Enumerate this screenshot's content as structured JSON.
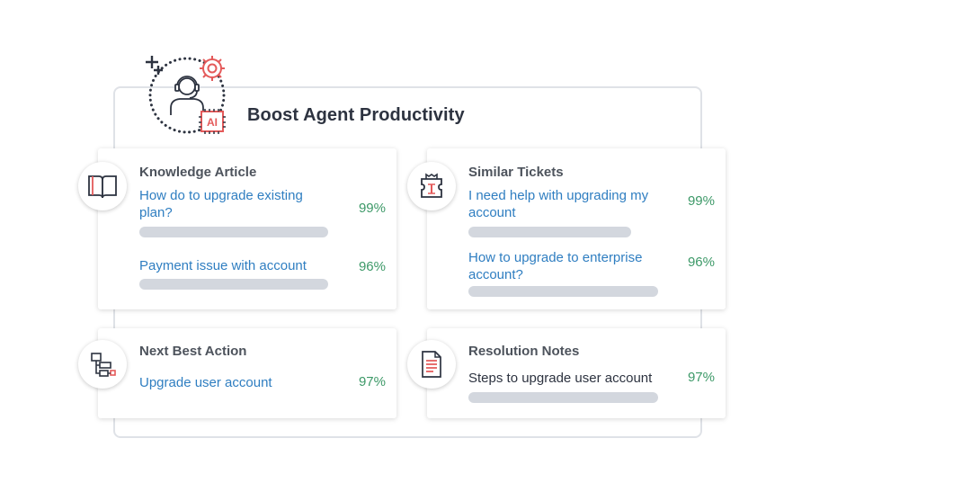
{
  "header": {
    "title": "Boost Agent Productivity",
    "icon": "support-agent-ai-icon",
    "ai_label": "AI"
  },
  "cards": {
    "knowledge": {
      "title": "Knowledge Article",
      "icon": "book-icon",
      "items": [
        {
          "text": "How do to upgrade existing plan?",
          "percent": "99%"
        },
        {
          "text": "Payment issue with account",
          "percent": "96%"
        }
      ]
    },
    "similar": {
      "title": "Similar Tickets",
      "icon": "ticket-icon",
      "items": [
        {
          "text": "I need help with upgrading my account",
          "percent": "99%"
        },
        {
          "text": "How to upgrade to enterprise account?",
          "percent": "96%"
        }
      ]
    },
    "next_action": {
      "title": "Next Best Action",
      "icon": "flowchart-icon",
      "items": [
        {
          "text": "Upgrade user account",
          "percent": "97%"
        }
      ]
    },
    "resolution": {
      "title": "Resolution Notes",
      "icon": "document-icon",
      "items": [
        {
          "text": "Steps to upgrade user account",
          "percent": "97%"
        }
      ]
    }
  },
  "colors": {
    "link": "#2f7ec1",
    "percent": "#3d9968",
    "accent_red": "#e45a5a",
    "bar": "#d3d7de"
  }
}
